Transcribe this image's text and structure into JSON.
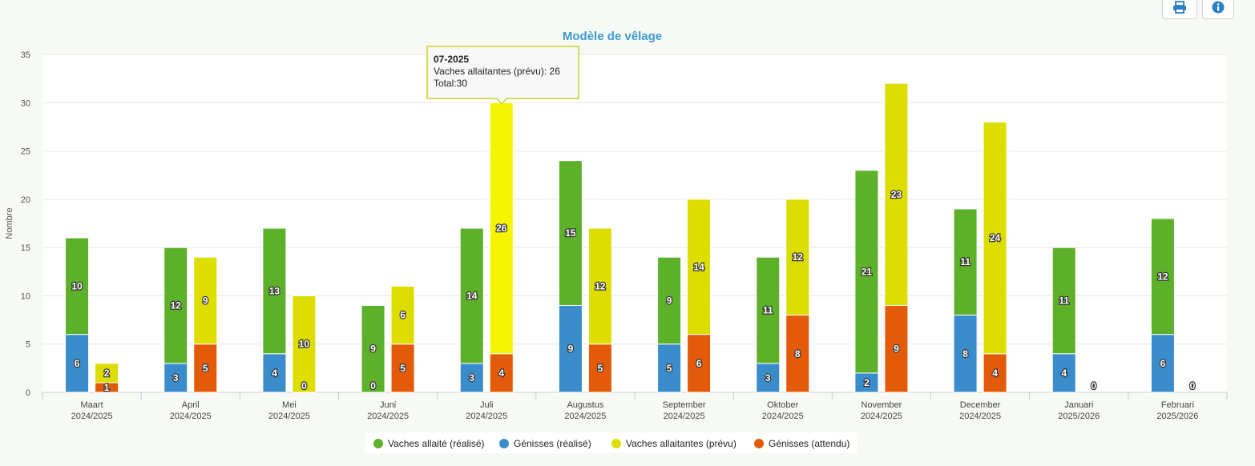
{
  "toolbar": {
    "print_icon": "print-icon",
    "info_icon": "info-icon"
  },
  "chart_data": {
    "type": "bar",
    "stacked": true,
    "title": "Modèle de vêlage",
    "ylabel": "Nombre",
    "ylim": [
      0,
      35
    ],
    "yticks": [
      0,
      5,
      10,
      15,
      20,
      25,
      30,
      35
    ],
    "grid": true,
    "legend_position": "bottom",
    "categories": [
      {
        "month": "Maart",
        "season": "2024/2025"
      },
      {
        "month": "April",
        "season": "2024/2025"
      },
      {
        "month": "Mei",
        "season": "2024/2025"
      },
      {
        "month": "Juni",
        "season": "2024/2025"
      },
      {
        "month": "Juli",
        "season": "2024/2025"
      },
      {
        "month": "Augustus",
        "season": "2024/2025"
      },
      {
        "month": "September",
        "season": "2024/2025"
      },
      {
        "month": "Oktober",
        "season": "2024/2025"
      },
      {
        "month": "November",
        "season": "2024/2025"
      },
      {
        "month": "December",
        "season": "2024/2025"
      },
      {
        "month": "Januari",
        "season": "2025/2026"
      },
      {
        "month": "Februari",
        "season": "2025/2026"
      }
    ],
    "series": [
      {
        "name": "Vaches allaité (réalisé)",
        "stack": "realise",
        "color": "#5db12a",
        "values": [
          10,
          12,
          13,
          9,
          14,
          15,
          9,
          11,
          21,
          11,
          11,
          12
        ]
      },
      {
        "name": "Génisses (réalisé)",
        "stack": "realise",
        "color": "#3a8ccb",
        "values": [
          6,
          3,
          4,
          0,
          3,
          9,
          5,
          3,
          2,
          8,
          4,
          6
        ]
      },
      {
        "name": "Vaches allaitantes (prévu)",
        "stack": "prevu",
        "color": "#dedd00",
        "values": [
          2,
          9,
          10,
          6,
          26,
          12,
          14,
          12,
          23,
          24,
          null,
          null
        ]
      },
      {
        "name": "Génisses (attendu)",
        "stack": "prevu",
        "color": "#e45a0b",
        "values": [
          1,
          5,
          0,
          5,
          4,
          5,
          6,
          8,
          9,
          4,
          0,
          0
        ]
      }
    ],
    "legend_order": [
      0,
      1,
      2,
      3
    ],
    "highlight": {
      "category_index": 4,
      "series_index": 2,
      "color": "#f5f500"
    },
    "tooltip": {
      "header": "07-2025",
      "line": "Vaches allaitantes (prévu): 26",
      "total": "Total:30"
    }
  }
}
